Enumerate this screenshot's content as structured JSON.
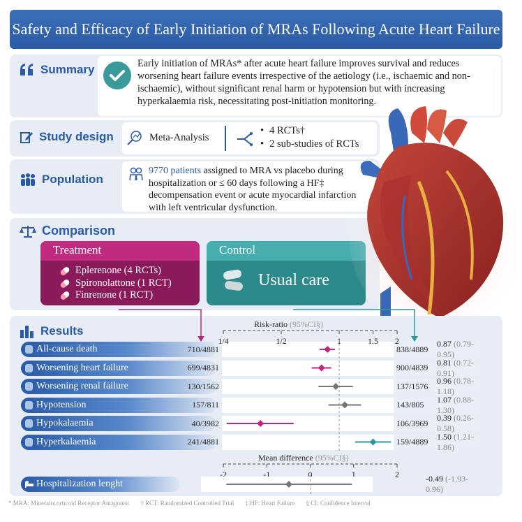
{
  "title": "Safety and Efficacy of Early Initiation of MRAs Following Acute Heart Failure",
  "summary": {
    "heading": "Summary",
    "text": "Early initiation of MRAs* after acute heart failure improves survival and reduces worsening heart failure events irrespective of the aetiology (i.e., ischaemic and non-ischaemic), without significant renal harm or hypotension but with increasing hyperkalaemia risk, necessitating post-initiation monitoring."
  },
  "study_design": {
    "heading": "Study design",
    "type": "Meta-Analysis",
    "items": [
      "4 RCTs†",
      "2 sub-studies of RCTs"
    ]
  },
  "population": {
    "heading": "Population",
    "highlight": "9770 patients",
    "text": " assigned to MRA vs placebo during hospitalization or ≤ 60 days following a HF‡ decompensation event or acute myocardial infarction with left ventricular dysfunction."
  },
  "comparison": {
    "heading": "Comparison",
    "treatment": {
      "label": "Treatment",
      "items": [
        "Eplerenone (4 RCTs)",
        "Spironolattone (1 RCT)",
        "Finrenone (1 RCT)"
      ]
    },
    "control": {
      "label": "Control",
      "text": "Usual care"
    }
  },
  "results": {
    "heading": "Results",
    "rr_title": "Risk-ratio",
    "rr_ci": "(95%CI§)",
    "rr_ticks": [
      "1/4",
      "1/2",
      "1",
      "1.5",
      "2"
    ],
    "md_title": "Mean difference",
    "md_ci": "(95%CI§)",
    "md_ticks": [
      "-2",
      "-1",
      "0",
      "1",
      "2"
    ],
    "rows": [
      {
        "label": "All-cause death",
        "treat": "710/4881",
        "ctrl": "838/4889",
        "est": "0.87",
        "ci": "(0.79-0.95)"
      },
      {
        "label": "Worsening heart failure",
        "treat": "699/4831",
        "ctrl": "900/4839",
        "est": "0.81",
        "ci": "(0.72-0.91)"
      },
      {
        "label": "Worsening renal failure",
        "treat": "130/1562",
        "ctrl": "137/1576",
        "est": "0.96",
        "ci": "(0.78-1.18)"
      },
      {
        "label": "Hypotension",
        "treat": "157/811",
        "ctrl": "143/805",
        "est": "1.07",
        "ci": "(0.88-1.30)"
      },
      {
        "label": "Hypokalaemia",
        "treat": "40/3982",
        "ctrl": "106/3969",
        "est": "0.39",
        "ci": "(0.26-0.58)"
      },
      {
        "label": "Hyperkalaemia",
        "treat": "241/4881",
        "ctrl": "159/4889",
        "est": "1.50",
        "ci": "(1.21-1.86)"
      }
    ],
    "hosp": {
      "label": "Hospitalization lenght",
      "est": "-0.49",
      "ci": "(-1.93-0.96)"
    }
  },
  "chart_data": [
    {
      "type": "forest",
      "scale": "log",
      "xlim": [
        0.25,
        2
      ],
      "categories": [
        "All-cause death",
        "Worsening heart failure",
        "Worsening renal failure",
        "Hypotension",
        "Hypokalaemia",
        "Hyperkalaemia"
      ],
      "estimates": [
        0.87,
        0.81,
        0.96,
        1.07,
        0.39,
        1.5
      ],
      "ci_low": [
        0.79,
        0.72,
        0.78,
        0.88,
        0.26,
        1.21
      ],
      "ci_high": [
        0.95,
        0.91,
        1.18,
        1.3,
        0.58,
        1.86
      ],
      "colors": [
        "#c0267f",
        "#c0267f",
        "#777777",
        "#777777",
        "#c0267f",
        "#2a9a9a"
      ]
    },
    {
      "type": "forest",
      "scale": "linear",
      "xlim": [
        -2,
        2
      ],
      "categories": [
        "Hospitalization lenght"
      ],
      "estimates": [
        -0.49
      ],
      "ci_low": [
        -1.93
      ],
      "ci_high": [
        0.96
      ],
      "colors": [
        "#777777"
      ]
    }
  ],
  "footer": [
    "* MRA: Mineralocorticoid Receptor Antagonist",
    "† RCT: Randomized Controlled Trial",
    "‡ HF: Heart Failure",
    "§ CI: Confidence Interval"
  ],
  "colors": {
    "primary": "#2a5aa5",
    "treatment": "#c02b80",
    "control": "#2c8a8a"
  }
}
